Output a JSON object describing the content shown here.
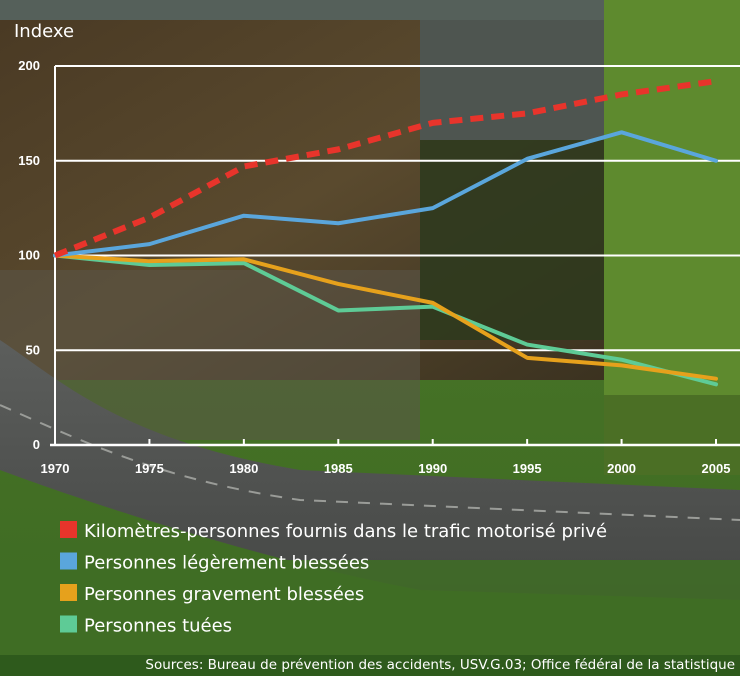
{
  "chart_data": {
    "type": "line",
    "ylabel": "Indexe",
    "ylim": [
      0,
      200
    ],
    "yticks": [
      0,
      50,
      100,
      150,
      200
    ],
    "x": [
      1970,
      1975,
      1980,
      1985,
      1990,
      1995,
      2000,
      2005
    ],
    "xticks": [
      "1970",
      "1975",
      "1980",
      "1985",
      "1990",
      "1995",
      "2000",
      "2005"
    ],
    "grid": true,
    "legend_position": "bottom-left",
    "series": [
      {
        "name": "Kilomètres-personnes fournis dans le trafic motorisé privé",
        "color": "#e8342b",
        "style": "dashed",
        "values": [
          100,
          120,
          147,
          156,
          170,
          175,
          185,
          192
        ]
      },
      {
        "name": "Personnes légèrement blessées",
        "color": "#5aa6dc",
        "style": "solid",
        "values": [
          100,
          106,
          121,
          117,
          125,
          151,
          165,
          150
        ]
      },
      {
        "name": "Personnes gravement blessées",
        "color": "#e6a11c",
        "style": "solid",
        "values": [
          100,
          97,
          98,
          85,
          75,
          46,
          42,
          35
        ]
      },
      {
        "name": "Personnes tuées",
        "color": "#5ecb96",
        "style": "solid",
        "values": [
          100,
          95,
          96,
          71,
          73,
          53,
          45,
          32
        ]
      }
    ],
    "source": "Sources: Bureau de prévention des accidents, USV.G.03; Office fédéral de la statistique"
  },
  "colors": {
    "grid": "#ffffff",
    "axis": "#ffffff",
    "text": "#ffffff"
  }
}
